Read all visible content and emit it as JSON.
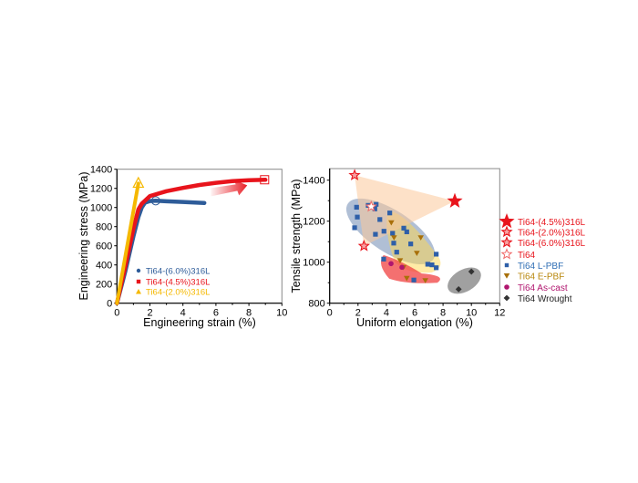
{
  "chart_data": [
    {
      "type": "line",
      "xlabel": "Engineering strain (%)",
      "ylabel": "Engineering stress (MPa)",
      "xlim": [
        0,
        10
      ],
      "ylim": [
        0,
        1400
      ],
      "xticks": [
        0,
        2,
        4,
        6,
        8,
        10
      ],
      "yticks": [
        0,
        200,
        400,
        600,
        800,
        1000,
        1200,
        1400
      ],
      "grid": false,
      "legend_position": "bottom-right",
      "series": [
        {
          "name": "Ti64-(6.0%)316L",
          "color": "#2e5c99",
          "marker": "circle",
          "x": [
            0,
            0.5,
            1.0,
            1.3,
            1.5,
            1.7,
            2.0,
            2.35,
            3,
            4,
            5.3
          ],
          "y": [
            0,
            330,
            700,
            900,
            1000,
            1050,
            1068,
            1070,
            1065,
            1058,
            1048
          ],
          "end_marker": [
            2.35,
            1070
          ]
        },
        {
          "name": "Ti64-(4.5%)316L",
          "color": "#e8141c",
          "marker": "square",
          "x": [
            0,
            0.5,
            1.0,
            1.3,
            1.5,
            2,
            3,
            4,
            5,
            6,
            7,
            8,
            9
          ],
          "y": [
            0,
            380,
            780,
            980,
            1040,
            1120,
            1170,
            1205,
            1235,
            1258,
            1275,
            1285,
            1290
          ],
          "end_marker": [
            8.95,
            1290
          ]
        },
        {
          "name": "Ti64-(2.0%)316L",
          "color": "#f5b800",
          "marker": "triangle",
          "x": [
            0,
            1.3
          ],
          "y": [
            0,
            1250
          ],
          "end_marker": [
            1.3,
            1255
          ]
        }
      ]
    },
    {
      "type": "scatter",
      "xlabel": "Uniform elongation (%)",
      "ylabel": "Tensile strength (MPa)",
      "xlim": [
        0,
        12
      ],
      "ylim": [
        800,
        1450
      ],
      "xticks": [
        0,
        2,
        4,
        6,
        8,
        10,
        12
      ],
      "yticks": [
        800,
        1000,
        1200,
        1400
      ],
      "grid": false,
      "legend_position": "right outside",
      "series": [
        {
          "name": "Ti64-(4.5%)316L",
          "color": "#e8141c",
          "marker": "star-large",
          "points": [
            [
              8.83,
              1298
            ]
          ]
        },
        {
          "name": "Ti64-(2.0%)316L",
          "color": "#e8141c",
          "marker": "star-outline",
          "points": [
            [
              1.76,
              1424
            ]
          ]
        },
        {
          "name": "Ti64-(6.0%)316L",
          "color": "#e8141c",
          "marker": "star-outline",
          "points": [
            [
              2.42,
              1079
            ]
          ]
        },
        {
          "name": "Ti64",
          "color": "#f06a6a",
          "marker": "star-hollow",
          "points": [
            [
              2.93,
              1271
            ]
          ]
        },
        {
          "name": "Ti64 L-PBF",
          "color": "#2e5fa8",
          "marker": "square",
          "points": [
            [
              1.9,
              1268
            ],
            [
              1.95,
              1220
            ],
            [
              1.76,
              1168
            ],
            [
              3.81,
              1015
            ],
            [
              4.44,
              1141
            ],
            [
              4.52,
              1093
            ],
            [
              4.73,
              1049
            ],
            [
              5.23,
              1166
            ],
            [
              5.44,
              1148
            ],
            [
              5.72,
              1089
            ],
            [
              5.94,
              913
            ],
            [
              6.92,
              990
            ],
            [
              7.22,
              987
            ],
            [
              7.52,
              1039
            ],
            [
              7.52,
              973
            ],
            [
              2.72,
              1277
            ],
            [
              3.28,
              1282
            ],
            [
              3.19,
              1260
            ],
            [
              3.54,
              1208
            ],
            [
              3.83,
              1151
            ],
            [
              3.23,
              1136
            ],
            [
              4.24,
              1240
            ]
          ]
        },
        {
          "name": "Ti64 E-PBF",
          "color": "#a8700a",
          "marker": "triangle-down",
          "points": [
            [
              4.35,
              1193
            ],
            [
              4.54,
              1120
            ],
            [
              6.43,
              1120
            ],
            [
              6.15,
              1044
            ],
            [
              4.97,
              1008
            ],
            [
              5.21,
              975
            ],
            [
              5.44,
              922
            ],
            [
              6.75,
              911
            ]
          ]
        },
        {
          "name": "Ti64 As-cast",
          "color": "#b0156e",
          "marker": "circle",
          "points": [
            [
              4.33,
              993
            ],
            [
              5.1,
              975
            ]
          ]
        },
        {
          "name": "Ti64 Wrought",
          "color": "#333333",
          "marker": "diamond",
          "points": [
            [
              10.0,
              954
            ],
            [
              9.1,
              868
            ]
          ]
        }
      ],
      "legend_colors": [
        "#e8141c",
        "#e8141c",
        "#e8141c",
        "#e8141c",
        "#2e6db4",
        "#b8860b",
        "#b0156e",
        "#222222"
      ]
    }
  ]
}
